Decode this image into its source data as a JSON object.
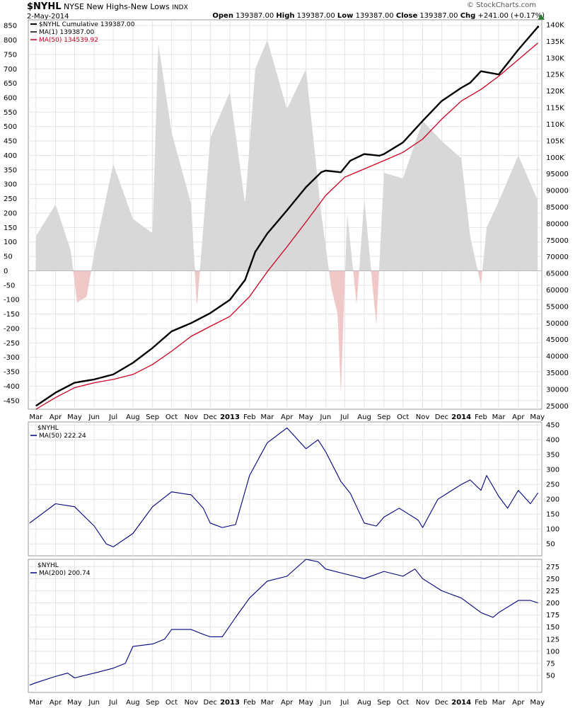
{
  "header": {
    "symbol": "$NYHL",
    "name": "NYSE New Highs-New Lows",
    "exchange": "INDX",
    "date": "2-May-2014",
    "brand": "© StockCharts.com",
    "open_label": "Open",
    "open": "139387.00",
    "high_label": "High",
    "high": "139387.00",
    "low_label": "Low",
    "low": "139387.00",
    "close_label": "Close",
    "close": "139387.00",
    "chg_label": "Chg",
    "chg": "+241.00 (+0.17%)"
  },
  "colors": {
    "cumulative": "#000000",
    "ma50_main": "#cc0022",
    "ma_lower": "#000080",
    "hist_pos": "#d8d8d8",
    "hist_neg": "#f0c8c8",
    "grid": "#e4e4e4",
    "up_arrow": "#2e7d32"
  },
  "chart_data": [
    {
      "type": "line",
      "panel": "main",
      "series": [
        {
          "name": "$NYHL Cumulative 139387.00",
          "axis": "right",
          "x": [
            "2012-03-01",
            "2012-04-01",
            "2012-05-01",
            "2012-06-01",
            "2012-07-01",
            "2012-08-01",
            "2012-09-01",
            "2012-10-01",
            "2012-11-01",
            "2012-12-01",
            "2013-01-01",
            "2013-01-25",
            "2013-02-10",
            "2013-03-01",
            "2013-04-01",
            "2013-05-01",
            "2013-05-25",
            "2013-06-01",
            "2013-06-25",
            "2013-07-10",
            "2013-08-01",
            "2013-08-25",
            "2013-09-01",
            "2013-10-01",
            "2013-11-01",
            "2013-12-01",
            "2014-01-01",
            "2014-01-15",
            "2014-02-01",
            "2014-03-01",
            "2014-04-01",
            "2014-05-02"
          ],
          "values": [
            25000,
            29000,
            32000,
            33000,
            34500,
            38000,
            42500,
            47500,
            50000,
            53000,
            57000,
            63000,
            71500,
            77000,
            84000,
            91000,
            95500,
            96000,
            95500,
            99000,
            101000,
            100500,
            101000,
            104500,
            111000,
            117000,
            121000,
            122500,
            126000,
            125000,
            132500,
            139387
          ]
        },
        {
          "name": "MA(1) 139387.00",
          "axis": "right",
          "x": [
            "2014-05-02"
          ],
          "values": [
            139387
          ]
        },
        {
          "name": "MA(50) 134539.92",
          "axis": "right",
          "x": [
            "2012-03-01",
            "2012-04-01",
            "2012-05-01",
            "2012-06-01",
            "2012-07-01",
            "2012-08-01",
            "2012-09-01",
            "2012-10-01",
            "2012-11-01",
            "2012-12-01",
            "2013-01-01",
            "2013-02-01",
            "2013-03-01",
            "2013-04-01",
            "2013-05-01",
            "2013-06-01",
            "2013-07-01",
            "2013-08-01",
            "2013-09-01",
            "2013-10-01",
            "2013-11-01",
            "2013-12-01",
            "2014-01-01",
            "2014-02-01",
            "2014-03-01",
            "2014-04-01",
            "2014-05-02"
          ],
          "values": [
            24000,
            27500,
            30500,
            32000,
            33000,
            34500,
            37500,
            41500,
            46000,
            49000,
            52000,
            58000,
            65500,
            73000,
            80500,
            88500,
            94000,
            96500,
            99000,
            101500,
            105500,
            111500,
            117000,
            120500,
            124500,
            129500,
            134540
          ]
        }
      ],
      "histogram": {
        "name": "$NYHL",
        "axis": "left",
        "x": [
          "2012-03-01",
          "2012-04-01",
          "2012-04-25",
          "2012-05-05",
          "2012-05-20",
          "2012-06-01",
          "2012-07-01",
          "2012-08-01",
          "2012-09-01",
          "2012-09-10",
          "2012-10-01",
          "2012-11-01",
          "2012-11-10",
          "2012-12-01",
          "2013-01-01",
          "2013-01-25",
          "2013-02-10",
          "2013-03-01",
          "2013-04-01",
          "2013-05-01",
          "2013-05-25",
          "2013-06-10",
          "2013-06-20",
          "2013-06-25",
          "2013-07-05",
          "2013-07-20",
          "2013-08-01",
          "2013-08-20",
          "2013-09-01",
          "2013-10-01",
          "2013-11-01",
          "2013-12-01",
          "2014-01-01",
          "2014-01-15",
          "2014-02-01",
          "2014-02-10",
          "2014-03-01",
          "2014-04-01",
          "2014-05-02"
        ],
        "values": [
          120,
          230,
          70,
          -110,
          -90,
          60,
          370,
          180,
          130,
          790,
          480,
          230,
          -130,
          460,
          620,
          230,
          700,
          800,
          560,
          700,
          200,
          -60,
          -150,
          -430,
          200,
          -120,
          250,
          -190,
          340,
          320,
          520,
          450,
          390,
          120,
          -50,
          150,
          240,
          400,
          241
        ]
      },
      "left_axis": {
        "ylim": [
          -480,
          870
        ],
        "ticks": [
          -450,
          -400,
          -350,
          -300,
          -250,
          -200,
          -150,
          -100,
          -50,
          0,
          50,
          100,
          150,
          200,
          250,
          300,
          350,
          400,
          450,
          500,
          550,
          600,
          650,
          700,
          750,
          800,
          850
        ]
      },
      "right_axis": {
        "ylim": [
          24000,
          141500
        ],
        "ticks": [
          "25000",
          "30000",
          "35000",
          "40000",
          "45000",
          "50000",
          "55000",
          "60000",
          "65000",
          "70000",
          "75000",
          "80000",
          "85000",
          "90000",
          "95000",
          "100K",
          "105K",
          "110K",
          "115K",
          "120K",
          "125K",
          "130K",
          "135K",
          "140K"
        ]
      }
    },
    {
      "type": "line",
      "panel": "ma50",
      "series": [
        {
          "name": "MA(50) 222.24",
          "x": [
            "2012-02-20",
            "2012-04-01",
            "2012-05-01",
            "2012-06-01",
            "2012-06-20",
            "2012-07-01",
            "2012-08-01",
            "2012-09-01",
            "2012-10-01",
            "2012-11-01",
            "2012-11-20",
            "2012-12-01",
            "2012-12-20",
            "2013-01-10",
            "2013-02-01",
            "2013-03-01",
            "2013-04-01",
            "2013-05-01",
            "2013-05-20",
            "2013-06-01",
            "2013-06-25",
            "2013-07-10",
            "2013-08-01",
            "2013-08-20",
            "2013-09-01",
            "2013-09-25",
            "2013-10-10",
            "2013-10-25",
            "2013-11-01",
            "2013-11-25",
            "2014-01-01",
            "2014-01-15",
            "2014-02-01",
            "2014-02-10",
            "2014-03-01",
            "2014-03-15",
            "2014-04-01",
            "2014-04-20",
            "2014-05-02"
          ],
          "values": [
            120,
            185,
            175,
            110,
            50,
            40,
            85,
            175,
            225,
            215,
            170,
            120,
            105,
            115,
            280,
            390,
            440,
            370,
            400,
            360,
            260,
            220,
            120,
            110,
            140,
            170,
            150,
            130,
            105,
            200,
            250,
            265,
            230,
            280,
            210,
            170,
            230,
            185,
            222
          ]
        }
      ],
      "ylim": [
        10,
        460
      ],
      "ticks": [
        50,
        100,
        150,
        200,
        250,
        300,
        350,
        400,
        450
      ]
    },
    {
      "type": "line",
      "panel": "ma200",
      "series": [
        {
          "name": "MA(200) 200.74",
          "x": [
            "2012-02-20",
            "2012-03-01",
            "2012-04-01",
            "2012-04-20",
            "2012-05-01",
            "2012-06-01",
            "2012-07-01",
            "2012-07-20",
            "2012-08-01",
            "2012-09-01",
            "2012-09-20",
            "2012-10-01",
            "2012-11-01",
            "2012-11-20",
            "2012-12-01",
            "2012-12-20",
            "2013-01-10",
            "2013-02-01",
            "2013-03-01",
            "2013-04-01",
            "2013-05-01",
            "2013-05-20",
            "2013-06-01",
            "2013-07-01",
            "2013-08-01",
            "2013-09-01",
            "2013-10-01",
            "2013-10-20",
            "2013-11-01",
            "2013-12-01",
            "2014-01-01",
            "2014-02-01",
            "2014-02-20",
            "2014-03-01",
            "2014-04-01",
            "2014-04-20",
            "2014-05-02"
          ],
          "values": [
            30,
            35,
            48,
            55,
            45,
            55,
            65,
            75,
            110,
            115,
            125,
            145,
            145,
            135,
            130,
            130,
            170,
            210,
            245,
            255,
            290,
            285,
            270,
            260,
            250,
            265,
            255,
            270,
            250,
            225,
            210,
            180,
            170,
            180,
            205,
            205,
            200
          ]
        }
      ],
      "ylim": [
        15,
        290
      ],
      "ticks": [
        50,
        75,
        100,
        125,
        150,
        175,
        200,
        225,
        250,
        275
      ]
    }
  ],
  "x_axis": {
    "range": [
      "2012-02-18",
      "2014-05-08"
    ],
    "ticks": [
      {
        "date": "2012-03-01",
        "label": "Mar",
        "bold": false
      },
      {
        "date": "2012-04-01",
        "label": "Apr",
        "bold": false
      },
      {
        "date": "2012-05-01",
        "label": "May",
        "bold": false
      },
      {
        "date": "2012-06-01",
        "label": "Jun",
        "bold": false
      },
      {
        "date": "2012-07-01",
        "label": "Jul",
        "bold": false
      },
      {
        "date": "2012-08-01",
        "label": "Aug",
        "bold": false
      },
      {
        "date": "2012-09-01",
        "label": "Sep",
        "bold": false
      },
      {
        "date": "2012-10-01",
        "label": "Oct",
        "bold": false
      },
      {
        "date": "2012-11-01",
        "label": "Nov",
        "bold": false
      },
      {
        "date": "2012-12-01",
        "label": "Dec",
        "bold": false
      },
      {
        "date": "2013-01-01",
        "label": "2013",
        "bold": true
      },
      {
        "date": "2013-02-01",
        "label": "Feb",
        "bold": false
      },
      {
        "date": "2013-03-01",
        "label": "Mar",
        "bold": false
      },
      {
        "date": "2013-04-01",
        "label": "Apr",
        "bold": false
      },
      {
        "date": "2013-05-01",
        "label": "May",
        "bold": false
      },
      {
        "date": "2013-06-01",
        "label": "Jun",
        "bold": false
      },
      {
        "date": "2013-07-01",
        "label": "Jul",
        "bold": false
      },
      {
        "date": "2013-08-01",
        "label": "Aug",
        "bold": false
      },
      {
        "date": "2013-09-01",
        "label": "Sep",
        "bold": false
      },
      {
        "date": "2013-10-01",
        "label": "Oct",
        "bold": false
      },
      {
        "date": "2013-11-01",
        "label": "Nov",
        "bold": false
      },
      {
        "date": "2013-12-01",
        "label": "Dec",
        "bold": false
      },
      {
        "date": "2014-01-01",
        "label": "2014",
        "bold": true
      },
      {
        "date": "2014-02-01",
        "label": "Feb",
        "bold": false
      },
      {
        "date": "2014-03-01",
        "label": "Mar",
        "bold": false
      },
      {
        "date": "2014-04-01",
        "label": "Apr",
        "bold": false
      },
      {
        "date": "2014-05-01",
        "label": "May",
        "bold": false
      }
    ]
  },
  "panel_labels": {
    "ma50_symbol": "$NYHL",
    "ma200_symbol": "$NYHL"
  }
}
